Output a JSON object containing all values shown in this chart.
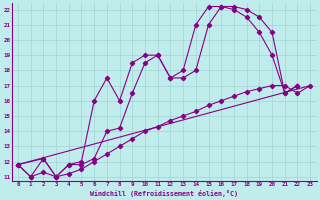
{
  "xlabel": "Windchill (Refroidissement éolien,°C)",
  "bg_color": "#c0ecec",
  "grid_color": "#a0d4d4",
  "line_color": "#880088",
  "xlim": [
    -0.5,
    23.5
  ],
  "ylim": [
    10.7,
    22.4
  ],
  "xticks": [
    0,
    1,
    2,
    3,
    4,
    5,
    6,
    7,
    8,
    9,
    10,
    11,
    12,
    13,
    14,
    15,
    16,
    17,
    18,
    19,
    20,
    21,
    22,
    23
  ],
  "yticks": [
    11,
    12,
    13,
    14,
    15,
    16,
    17,
    18,
    19,
    20,
    21,
    22
  ],
  "line1_x": [
    0,
    1,
    2,
    3,
    4,
    5,
    6,
    7,
    8,
    9,
    10,
    11,
    12,
    13,
    14,
    15,
    16,
    17,
    18,
    19,
    20,
    21,
    22
  ],
  "line1_y": [
    11.8,
    11.0,
    12.2,
    11.0,
    11.8,
    12.0,
    16.0,
    17.5,
    16.0,
    18.5,
    19.0,
    19.0,
    17.5,
    18.0,
    21.0,
    22.2,
    22.2,
    22.0,
    21.5,
    20.5,
    19.0,
    16.5,
    17.0
  ],
  "line2_x": [
    0,
    2,
    3,
    4,
    5,
    6,
    7,
    8,
    9,
    10,
    11,
    12,
    13,
    14,
    15,
    16,
    17,
    18,
    19,
    20,
    21,
    22
  ],
  "line2_y": [
    11.8,
    12.2,
    11.0,
    11.8,
    11.8,
    12.2,
    14.0,
    14.2,
    16.5,
    18.5,
    19.0,
    17.5,
    17.5,
    18.0,
    21.0,
    22.2,
    22.2,
    22.0,
    21.5,
    20.5,
    16.5,
    17.0
  ],
  "line3_x": [
    0,
    1,
    2,
    3,
    4,
    5,
    6,
    7,
    8,
    9,
    10,
    11,
    12,
    13,
    14,
    15,
    16,
    17,
    18,
    19,
    20,
    21,
    22,
    23
  ],
  "line3_y": [
    11.8,
    11.0,
    11.3,
    11.0,
    11.2,
    11.5,
    12.0,
    12.5,
    13.0,
    13.5,
    14.0,
    14.3,
    14.7,
    15.0,
    15.3,
    15.7,
    16.0,
    16.3,
    16.6,
    16.8,
    17.0,
    17.0,
    16.5,
    17.0
  ],
  "line4_x": [
    0,
    23
  ],
  "line4_y": [
    11.8,
    17.0
  ]
}
